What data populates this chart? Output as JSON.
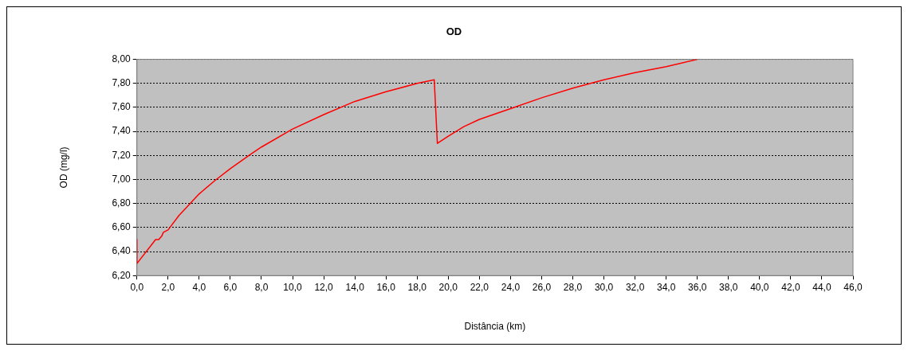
{
  "chart_data": {
    "type": "line",
    "title": "OD",
    "xlabel": "Distância (km)",
    "ylabel": "OD (mg/l)",
    "x": [
      0,
      0,
      1.2,
      1.4,
      1.6,
      1.7,
      2,
      2.7,
      4,
      5,
      6,
      7.3,
      8,
      10,
      12,
      14,
      16,
      18,
      19.1,
      19.3,
      20,
      21,
      22,
      24,
      26,
      28,
      30,
      32,
      34,
      36
    ],
    "series": [
      {
        "color": "#ff0000",
        "values": [
          6.5,
          6.3,
          6.5,
          6.5,
          6.53,
          6.56,
          6.58,
          6.7,
          6.88,
          6.99,
          7.09,
          7.21,
          7.27,
          7.42,
          7.54,
          7.65,
          7.73,
          7.8,
          7.83,
          7.3,
          7.36,
          7.44,
          7.5,
          7.59,
          7.68,
          7.76,
          7.83,
          7.89,
          7.94,
          8.0
        ]
      }
    ],
    "xlim": [
      0,
      46
    ],
    "xticks": [
      {
        "value": 0,
        "label": "0,0"
      },
      {
        "value": 2,
        "label": "2,0"
      },
      {
        "value": 4,
        "label": "4,0"
      },
      {
        "value": 6,
        "label": "6,0"
      },
      {
        "value": 8,
        "label": "8,0"
      },
      {
        "value": 10,
        "label": "10,0"
      },
      {
        "value": 12,
        "label": "12,0"
      },
      {
        "value": 14,
        "label": "14,0"
      },
      {
        "value": 16,
        "label": "16,0"
      },
      {
        "value": 18,
        "label": "18,0"
      },
      {
        "value": 20,
        "label": "20,0"
      },
      {
        "value": 22,
        "label": "22,0"
      },
      {
        "value": 24,
        "label": "24,0"
      },
      {
        "value": 26,
        "label": "26,0"
      },
      {
        "value": 28,
        "label": "28,0"
      },
      {
        "value": 30,
        "label": "30,0"
      },
      {
        "value": 32,
        "label": "32,0"
      },
      {
        "value": 34,
        "label": "34,0"
      },
      {
        "value": 36,
        "label": "36,0"
      },
      {
        "value": 38,
        "label": "38,0"
      },
      {
        "value": 40,
        "label": "40,0"
      },
      {
        "value": 42,
        "label": "42,0"
      },
      {
        "value": 44,
        "label": "44,0"
      },
      {
        "value": 46,
        "label": "46,0"
      }
    ],
    "ylim": [
      6.2,
      8.0
    ],
    "yticks": [
      {
        "value": 6.2,
        "label": "6,20"
      },
      {
        "value": 6.4,
        "label": "6,40"
      },
      {
        "value": 6.6,
        "label": "6,60"
      },
      {
        "value": 6.8,
        "label": "6,80"
      },
      {
        "value": 7.0,
        "label": "7,00"
      },
      {
        "value": 7.2,
        "label": "7,20"
      },
      {
        "value": 7.4,
        "label": "7,40"
      },
      {
        "value": 7.6,
        "label": "7,60"
      },
      {
        "value": 7.8,
        "label": "7,80"
      },
      {
        "value": 8.0,
        "label": "8,00"
      }
    ],
    "grid": "y",
    "legend": false,
    "marker": "none",
    "line_style": "solid"
  }
}
